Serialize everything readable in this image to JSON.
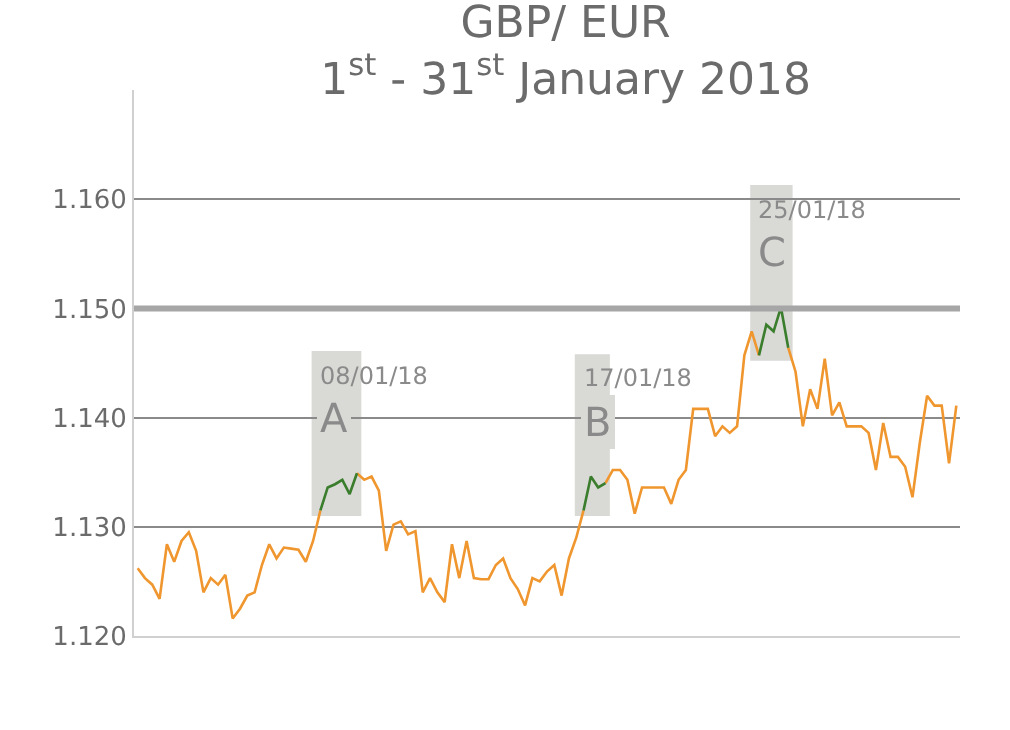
{
  "chart_data": {
    "type": "line",
    "title": "GBP/ EUR\n1$^{st}$ - 31$^{st}$ January 2018",
    "categories": [
      null,
      null,
      null,
      null,
      null,
      null,
      null,
      null,
      null,
      null,
      null,
      null,
      null,
      null,
      null,
      null,
      null,
      null,
      null,
      null,
      null,
      null,
      null,
      null,
      null,
      null,
      null,
      null,
      null,
      null,
      null,
      null,
      null,
      null,
      null,
      null,
      null,
      null,
      null,
      null,
      null,
      null,
      null,
      null,
      null,
      null,
      null,
      null,
      null,
      null,
      null,
      null,
      null,
      null,
      null,
      null,
      null,
      null,
      null,
      null,
      null,
      null,
      null,
      null,
      null,
      null,
      null,
      null,
      null,
      null,
      null,
      null,
      null,
      null,
      null,
      null,
      null,
      null,
      null,
      null,
      null,
      null,
      null,
      null,
      null,
      null,
      null,
      null,
      null,
      null,
      null,
      null,
      null,
      null,
      null,
      null,
      null,
      null,
      null,
      null,
      null,
      null,
      null,
      null,
      null,
      null,
      null,
      null,
      null,
      null,
      null,
      null,
      null
    ],
    "series": [
      {
        "color": "#f0962e",
        "values": [
          1.1262,
          1.1253,
          1.1247,
          1.1234,
          1.1284,
          1.1268,
          1.1287,
          1.1295,
          1.1278,
          1.124,
          1.1253,
          1.1247,
          1.1256,
          1.1216,
          1.1225,
          1.1237,
          1.124,
          1.1265,
          1.1284,
          1.1271,
          1.1281,
          1.128,
          1.1279,
          1.1268,
          1.1287,
          1.1315,
          null,
          null,
          null,
          null,
          1.1349,
          1.1343,
          1.1346,
          1.1333,
          1.1278,
          1.1302,
          1.1305,
          1.1293,
          1.1296,
          1.124,
          1.1253,
          1.124,
          1.1231,
          1.1284,
          1.1253,
          1.1287,
          1.1253,
          1.1252,
          1.1252,
          1.1265,
          1.1271,
          1.1253,
          1.1243,
          1.1228,
          1.1253,
          1.125,
          1.1259,
          1.1265,
          1.1237,
          1.1271,
          1.129,
          1.1315,
          null,
          null,
          1.134,
          1.1352,
          1.1352,
          1.1343,
          1.1312,
          1.1336,
          1.1336,
          1.1336,
          1.1336,
          1.1321,
          1.1343,
          1.1352,
          1.1408,
          1.1408,
          1.1408,
          1.1383,
          1.1392,
          1.1386,
          1.1392,
          1.1457,
          1.1479,
          1.1457,
          null,
          null,
          null,
          1.1464,
          1.1442,
          1.1392,
          1.1426,
          1.1408,
          1.1454,
          1.1402,
          1.1414,
          1.1392,
          1.1392,
          1.1392,
          1.1386,
          1.1352,
          1.1395,
          1.1364,
          1.1364,
          1.1355,
          1.1327,
          1.1377,
          1.142,
          1.1411,
          1.1411,
          1.1358,
          1.1411
        ]
      },
      {
        "color": "#3a7d2c",
        "values": [
          null,
          null,
          null,
          null,
          null,
          null,
          null,
          null,
          null,
          null,
          null,
          null,
          null,
          null,
          null,
          null,
          null,
          null,
          null,
          null,
          null,
          null,
          null,
          null,
          null,
          1.1315,
          1.1336,
          1.1339,
          1.1343,
          1.133,
          1.1349,
          null,
          null,
          null,
          null,
          null,
          null,
          null,
          null,
          null,
          null,
          null,
          null,
          null,
          null,
          null,
          null,
          null,
          null,
          null,
          null,
          null,
          null,
          null,
          null,
          null,
          null,
          null,
          null,
          null,
          null,
          1.1315,
          1.1346,
          1.1336,
          1.134,
          null,
          null,
          null,
          null,
          null,
          null,
          null,
          null,
          null,
          null,
          null,
          null,
          null,
          null,
          null,
          null,
          null,
          null,
          null,
          null,
          1.1457,
          1.1485,
          1.1479,
          1.1501,
          1.1464,
          null,
          null,
          null,
          null,
          null,
          null,
          null,
          null,
          null,
          null,
          null,
          null,
          null,
          null,
          null,
          null,
          null,
          null,
          null,
          null,
          null,
          null,
          null
        ]
      }
    ],
    "ylim": [
      1.12,
      1.17
    ],
    "yticks": [
      {
        "value": 1.12,
        "label": "1.120"
      },
      {
        "value": 1.13,
        "label": "1.130"
      },
      {
        "value": 1.14,
        "label": "1.140"
      },
      {
        "value": 1.15,
        "label": "1.150"
      },
      {
        "value": 1.16,
        "label": "1.160"
      }
    ],
    "grid": "y",
    "tick_labels": "y",
    "legend": false,
    "ref_lines": [
      {
        "axis": "y",
        "value": 1.15,
        "color": "#a6a6a6"
      }
    ],
    "annotations": [
      "08/01/18",
      "A",
      "17/01/18",
      "B",
      "25/01/18",
      "C"
    ]
  }
}
